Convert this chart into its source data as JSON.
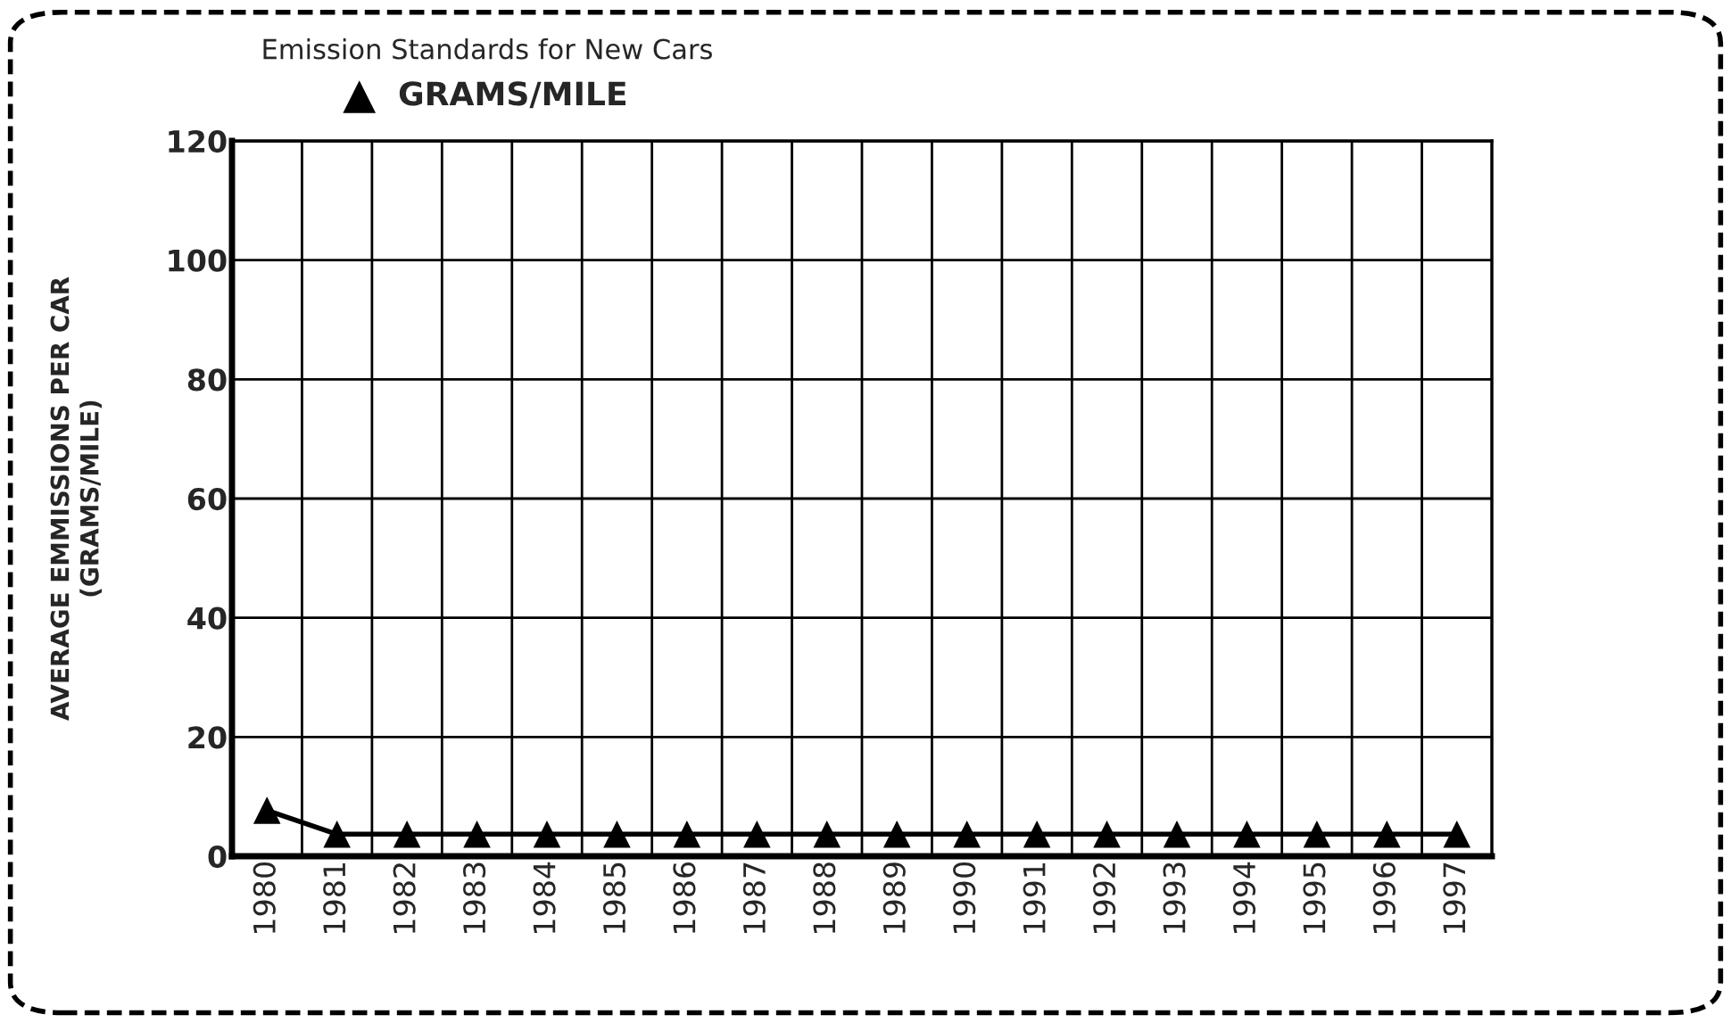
{
  "chart_data": {
    "type": "line",
    "legend_title": "Emission Standards for New Cars",
    "ylabel": "AVERAGE EMMISSIONS PER CAR\n(GRAMS/MILE)",
    "categories": [
      "1980",
      "1981",
      "1982",
      "1983",
      "1984",
      "1985",
      "1986",
      "1987",
      "1988",
      "1989",
      "1990",
      "1991",
      "1992",
      "1993",
      "1994",
      "1995",
      "1996",
      "1997"
    ],
    "series": [
      {
        "name": "GRAMS/MILE",
        "color": "#000000",
        "values": [
          7.7,
          3.7,
          3.7,
          3.7,
          3.7,
          3.7,
          3.7,
          3.7,
          3.7,
          3.7,
          3.7,
          3.7,
          3.7,
          3.7,
          3.7,
          3.7,
          3.7,
          3.7
        ]
      }
    ],
    "ylim": [
      0,
      120
    ],
    "yticks": [
      0,
      20,
      40,
      60,
      80,
      100,
      120
    ],
    "grid": true,
    "legend": "top left",
    "marker": "triangle",
    "line_style": "solid"
  }
}
